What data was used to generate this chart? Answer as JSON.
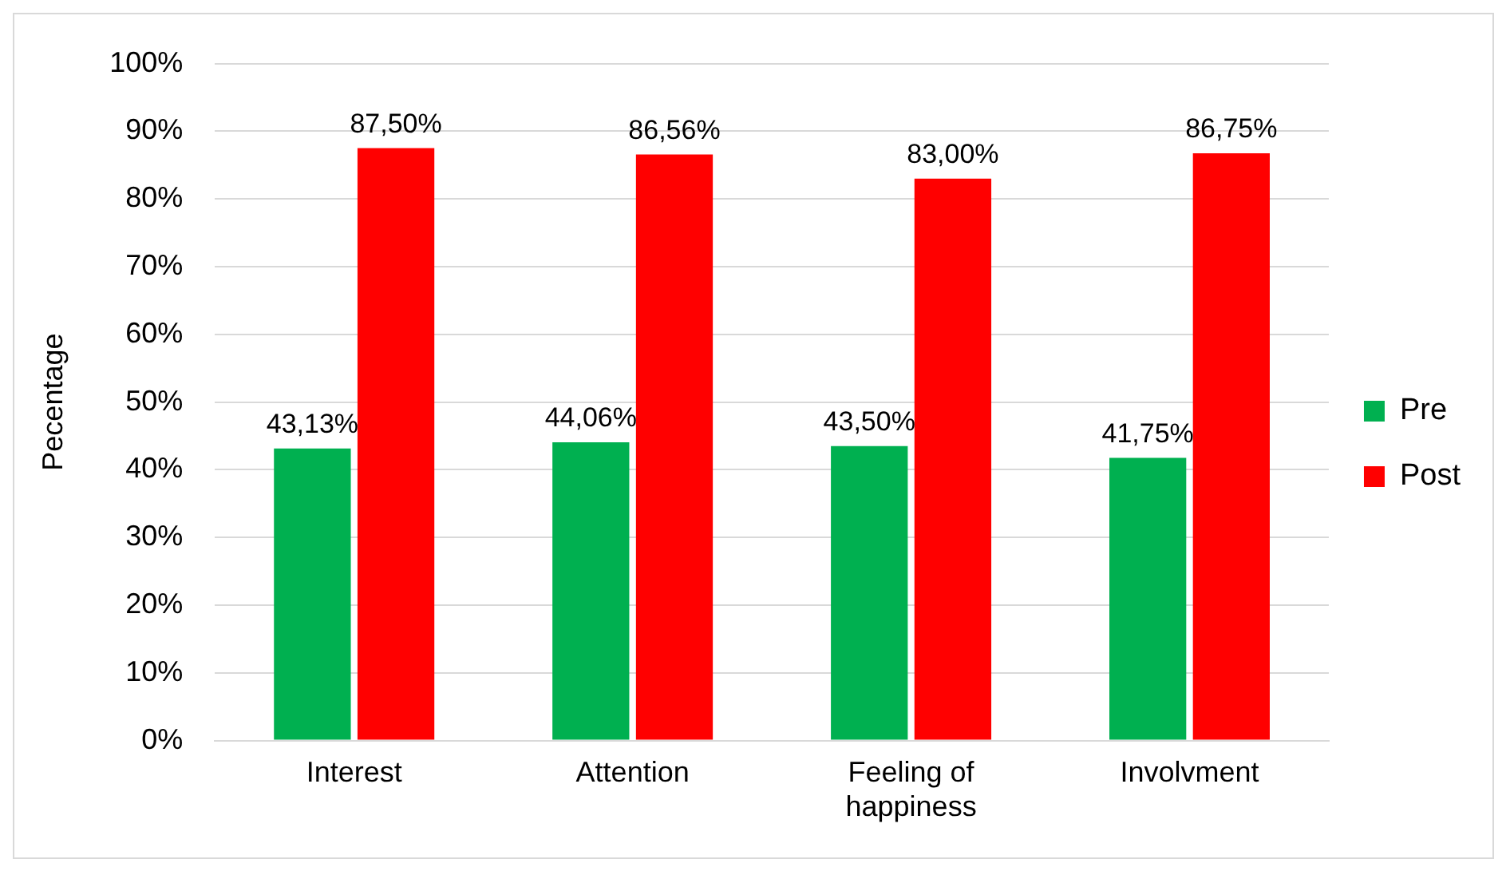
{
  "chart_data": {
    "type": "bar",
    "ylabel": "Pecentage",
    "categories": [
      "Interest",
      "Attention",
      "Feeling of happiness",
      "Involvment"
    ],
    "series": [
      {
        "name": "Pre",
        "color": "#00b050",
        "values": [
          43.13,
          44.06,
          43.5,
          41.75
        ],
        "value_labels": [
          "43,13%",
          "44,06%",
          "43,50%",
          "41,75%"
        ]
      },
      {
        "name": "Post",
        "color": "#ff0000",
        "values": [
          87.5,
          86.56,
          83.0,
          86.75
        ],
        "value_labels": [
          "87,50%",
          "86,56%",
          "83,00%",
          "86,75%"
        ]
      }
    ],
    "ylim": [
      0,
      100
    ],
    "yticks": [
      {
        "value": 0,
        "label": "0%"
      },
      {
        "value": 10,
        "label": "10%"
      },
      {
        "value": 20,
        "label": "20%"
      },
      {
        "value": 30,
        "label": "30%"
      },
      {
        "value": 40,
        "label": "40%"
      },
      {
        "value": 50,
        "label": "50%"
      },
      {
        "value": 60,
        "label": "60%"
      },
      {
        "value": 70,
        "label": "70%"
      },
      {
        "value": 80,
        "label": "80%"
      },
      {
        "value": 90,
        "label": "90%"
      },
      {
        "value": 100,
        "label": "100%"
      }
    ],
    "grid": "y",
    "legend": "right"
  }
}
